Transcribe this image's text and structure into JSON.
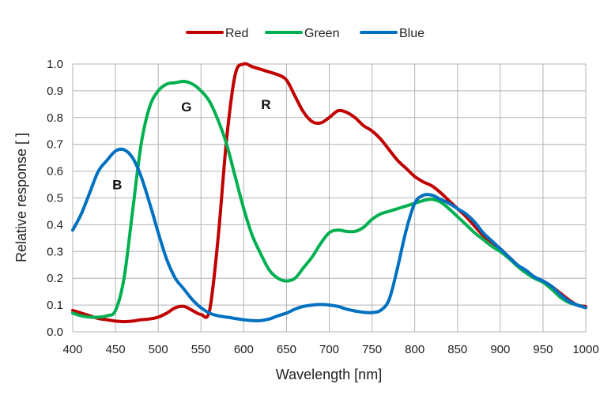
{
  "chart_data": {
    "type": "line",
    "xlabel": "Wavelength [nm]",
    "ylabel": "Relative response [ ]",
    "xlim": [
      400,
      1000
    ],
    "ylim": [
      0,
      1.0
    ],
    "xticks": [
      "400",
      "450",
      "500",
      "550",
      "600",
      "650",
      "700",
      "750",
      "800",
      "850",
      "900",
      "950",
      "1000"
    ],
    "yticks": [
      "0.0",
      "0.1",
      "0.2",
      "0.3",
      "0.4",
      "0.5",
      "0.6",
      "0.7",
      "0.8",
      "0.9",
      "1.0"
    ],
    "grid": true,
    "legend_position": "top-center",
    "series": [
      {
        "name": "Red",
        "color": "#c00000",
        "x": [
          400,
          410,
          420,
          430,
          440,
          450,
          460,
          470,
          480,
          490,
          500,
          510,
          520,
          530,
          540,
          550,
          560,
          570,
          580,
          590,
          600,
          610,
          620,
          630,
          640,
          650,
          660,
          670,
          680,
          690,
          700,
          710,
          720,
          730,
          740,
          750,
          760,
          770,
          780,
          790,
          800,
          810,
          820,
          830,
          840,
          850,
          860,
          870,
          880,
          890,
          900,
          910,
          920,
          930,
          940,
          950,
          960,
          970,
          980,
          990,
          1000
        ],
        "y": [
          0.08,
          0.07,
          0.06,
          0.05,
          0.045,
          0.04,
          0.038,
          0.04,
          0.045,
          0.048,
          0.055,
          0.07,
          0.09,
          0.095,
          0.08,
          0.065,
          0.08,
          0.35,
          0.72,
          0.96,
          1.0,
          0.99,
          0.98,
          0.97,
          0.96,
          0.94,
          0.88,
          0.82,
          0.785,
          0.78,
          0.8,
          0.825,
          0.82,
          0.8,
          0.77,
          0.75,
          0.72,
          0.68,
          0.64,
          0.61,
          0.58,
          0.56,
          0.545,
          0.52,
          0.49,
          0.46,
          0.43,
          0.395,
          0.36,
          0.335,
          0.31,
          0.28,
          0.25,
          0.225,
          0.205,
          0.19,
          0.17,
          0.145,
          0.12,
          0.1,
          0.095
        ]
      },
      {
        "name": "Green",
        "color": "#00b050",
        "x": [
          400,
          410,
          420,
          430,
          440,
          450,
          460,
          470,
          480,
          490,
          500,
          510,
          520,
          530,
          540,
          550,
          560,
          570,
          580,
          590,
          600,
          610,
          620,
          630,
          640,
          650,
          660,
          670,
          680,
          690,
          700,
          710,
          720,
          730,
          740,
          750,
          760,
          770,
          780,
          790,
          800,
          810,
          820,
          830,
          840,
          850,
          860,
          870,
          880,
          890,
          900,
          910,
          920,
          930,
          940,
          950,
          960,
          970,
          980,
          990,
          1000
        ],
        "y": [
          0.07,
          0.06,
          0.055,
          0.055,
          0.06,
          0.08,
          0.2,
          0.45,
          0.7,
          0.84,
          0.9,
          0.925,
          0.93,
          0.935,
          0.925,
          0.9,
          0.86,
          0.79,
          0.7,
          0.58,
          0.46,
          0.36,
          0.29,
          0.23,
          0.2,
          0.19,
          0.2,
          0.24,
          0.28,
          0.33,
          0.37,
          0.38,
          0.375,
          0.375,
          0.39,
          0.42,
          0.44,
          0.45,
          0.46,
          0.47,
          0.48,
          0.49,
          0.495,
          0.485,
          0.46,
          0.43,
          0.4,
          0.37,
          0.345,
          0.32,
          0.3,
          0.275,
          0.245,
          0.22,
          0.2,
          0.185,
          0.16,
          0.13,
          0.11,
          0.1,
          0.09
        ]
      },
      {
        "name": "Blue",
        "color": "#0070c0",
        "x": [
          400,
          410,
          420,
          430,
          440,
          450,
          460,
          470,
          480,
          490,
          500,
          510,
          520,
          530,
          540,
          550,
          560,
          570,
          580,
          590,
          600,
          610,
          620,
          630,
          640,
          650,
          660,
          670,
          680,
          690,
          700,
          710,
          720,
          730,
          740,
          750,
          760,
          770,
          780,
          790,
          800,
          810,
          820,
          830,
          840,
          850,
          860,
          870,
          880,
          890,
          900,
          910,
          920,
          930,
          940,
          950,
          960,
          970,
          980,
          990,
          1000
        ],
        "y": [
          0.38,
          0.44,
          0.52,
          0.6,
          0.64,
          0.675,
          0.68,
          0.65,
          0.58,
          0.48,
          0.37,
          0.27,
          0.2,
          0.16,
          0.12,
          0.09,
          0.07,
          0.06,
          0.055,
          0.05,
          0.045,
          0.042,
          0.042,
          0.048,
          0.06,
          0.07,
          0.085,
          0.095,
          0.1,
          0.102,
          0.1,
          0.095,
          0.085,
          0.078,
          0.073,
          0.072,
          0.08,
          0.12,
          0.24,
          0.38,
          0.48,
          0.51,
          0.51,
          0.495,
          0.48,
          0.46,
          0.44,
          0.41,
          0.37,
          0.34,
          0.31,
          0.28,
          0.25,
          0.23,
          0.205,
          0.19,
          0.17,
          0.14,
          0.115,
          0.1,
          0.09
        ]
      }
    ],
    "annotations": [
      {
        "text": "B",
        "x": 452,
        "y": 0.55
      },
      {
        "text": "G",
        "x": 533,
        "y": 0.84
      },
      {
        "text": "R",
        "x": 626,
        "y": 0.85
      }
    ]
  }
}
